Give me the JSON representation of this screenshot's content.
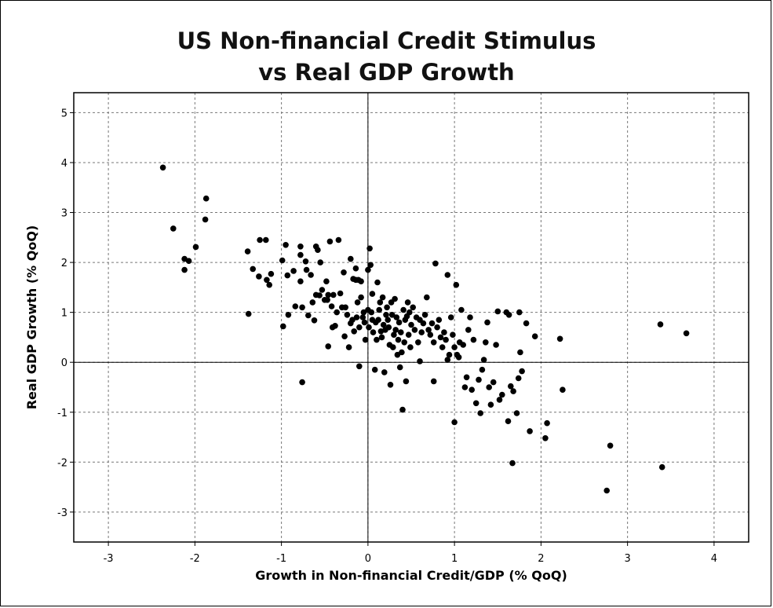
{
  "chart_data": {
    "type": "scatter",
    "title_lines": [
      "US Non-financial Credit Stimulus",
      "vs Real GDP Growth"
    ],
    "xlabel": "Growth in Non-financial Credit/GDP (% QoQ)",
    "ylabel": "Real GDP Growth (% QoQ)",
    "xlim": [
      -3.4,
      4.4
    ],
    "ylim": [
      -3.6,
      5.4
    ],
    "xticks": [
      -3,
      -2,
      -1,
      0,
      1,
      2,
      3,
      4
    ],
    "yticks": [
      -3,
      -2,
      -1,
      0,
      1,
      2,
      3,
      4,
      5
    ],
    "grid": true,
    "zero_lines": true,
    "series": [
      {
        "marker_color": "#000000",
        "points": [
          [
            -2.37,
            3.9
          ],
          [
            -2.25,
            2.68
          ],
          [
            -2.12,
            2.07
          ],
          [
            -2.12,
            1.85
          ],
          [
            -2.07,
            2.03
          ],
          [
            -1.99,
            2.31
          ],
          [
            -1.87,
            3.28
          ],
          [
            -1.88,
            2.86
          ],
          [
            -1.39,
            2.22
          ],
          [
            -1.38,
            0.97
          ],
          [
            -1.33,
            1.87
          ],
          [
            -1.26,
            1.72
          ],
          [
            -1.25,
            2.45
          ],
          [
            -1.18,
            2.45
          ],
          [
            -1.17,
            1.65
          ],
          [
            -1.14,
            1.55
          ],
          [
            -1.12,
            1.77
          ],
          [
            -0.99,
            2.04
          ],
          [
            -0.98,
            0.72
          ],
          [
            -0.95,
            2.35
          ],
          [
            -0.93,
            1.74
          ],
          [
            -0.92,
            0.95
          ],
          [
            -0.86,
            1.83
          ],
          [
            -0.84,
            1.12
          ],
          [
            -0.78,
            2.32
          ],
          [
            -0.78,
            2.15
          ],
          [
            -0.78,
            1.62
          ],
          [
            -0.76,
            1.1
          ],
          [
            -0.76,
            -0.4
          ],
          [
            -0.72,
            2.02
          ],
          [
            -0.71,
            1.85
          ],
          [
            -0.69,
            0.94
          ],
          [
            -0.66,
            1.75
          ],
          [
            -0.64,
            1.2
          ],
          [
            -0.62,
            0.84
          ],
          [
            -0.6,
            2.32
          ],
          [
            -0.6,
            1.35
          ],
          [
            -0.58,
            2.25
          ],
          [
            -0.56,
            1.34
          ],
          [
            -0.55,
            2.0
          ],
          [
            -0.53,
            1.45
          ],
          [
            -0.5,
            1.25
          ],
          [
            -0.48,
            1.62
          ],
          [
            -0.47,
            1.25
          ],
          [
            -0.46,
            0.32
          ],
          [
            -0.46,
            1.35
          ],
          [
            -0.44,
            2.42
          ],
          [
            -0.42,
            1.12
          ],
          [
            -0.41,
            0.7
          ],
          [
            -0.4,
            1.35
          ],
          [
            -0.38,
            0.73
          ],
          [
            -0.36,
            1.0
          ],
          [
            -0.34,
            2.45
          ],
          [
            -0.32,
            1.38
          ],
          [
            -0.3,
            1.1
          ],
          [
            -0.28,
            1.8
          ],
          [
            -0.27,
            0.52
          ],
          [
            -0.26,
            1.1
          ],
          [
            -0.24,
            0.95
          ],
          [
            -0.22,
            0.3
          ],
          [
            -0.2,
            0.78
          ],
          [
            -0.2,
            2.07
          ],
          [
            -0.18,
            0.85
          ],
          [
            -0.17,
            1.67
          ],
          [
            -0.16,
            0.62
          ],
          [
            -0.14,
            1.88
          ],
          [
            -0.14,
            1.65
          ],
          [
            -0.13,
            0.9
          ],
          [
            -0.12,
            1.2
          ],
          [
            -0.11,
            1.65
          ],
          [
            -0.1,
            -0.08
          ],
          [
            -0.1,
            0.7
          ],
          [
            -0.08,
            1.3
          ],
          [
            -0.08,
            1.62
          ],
          [
            -0.06,
            0.9
          ],
          [
            -0.05,
            1.0
          ],
          [
            -0.04,
            0.8
          ],
          [
            -0.03,
            0.45
          ],
          [
            0.0,
            1.05
          ],
          [
            0.0,
            1.85
          ],
          [
            0.01,
            0.7
          ],
          [
            0.02,
            2.28
          ],
          [
            0.03,
            1.95
          ],
          [
            0.04,
            1.0
          ],
          [
            0.05,
            0.85
          ],
          [
            0.05,
            1.37
          ],
          [
            0.06,
            0.6
          ],
          [
            0.08,
            -0.15
          ],
          [
            0.09,
            0.8
          ],
          [
            0.1,
            0.45
          ],
          [
            0.11,
            1.6
          ],
          [
            0.12,
            0.85
          ],
          [
            0.13,
            1.05
          ],
          [
            0.14,
            1.2
          ],
          [
            0.15,
            0.62
          ],
          [
            0.16,
            0.5
          ],
          [
            0.17,
            1.3
          ],
          [
            0.18,
            0.75
          ],
          [
            0.19,
            -0.2
          ],
          [
            0.2,
            0.65
          ],
          [
            0.21,
            0.95
          ],
          [
            0.22,
            1.1
          ],
          [
            0.23,
            0.85
          ],
          [
            0.24,
            0.7
          ],
          [
            0.25,
            0.35
          ],
          [
            0.26,
            -0.45
          ],
          [
            0.27,
            1.2
          ],
          [
            0.28,
            0.95
          ],
          [
            0.29,
            0.3
          ],
          [
            0.3,
            0.55
          ],
          [
            0.31,
            1.27
          ],
          [
            0.32,
            0.65
          ],
          [
            0.33,
            0.9
          ],
          [
            0.34,
            0.15
          ],
          [
            0.35,
            0.45
          ],
          [
            0.36,
            0.8
          ],
          [
            0.37,
            -0.1
          ],
          [
            0.38,
            0.6
          ],
          [
            0.39,
            0.2
          ],
          [
            0.4,
            -0.95
          ],
          [
            0.41,
            1.05
          ],
          [
            0.42,
            0.4
          ],
          [
            0.43,
            0.85
          ],
          [
            0.44,
            -0.38
          ],
          [
            0.45,
            0.92
          ],
          [
            0.46,
            1.2
          ],
          [
            0.47,
            0.55
          ],
          [
            0.48,
            1.0
          ],
          [
            0.49,
            0.3
          ],
          [
            0.5,
            0.75
          ],
          [
            0.52,
            1.1
          ],
          [
            0.54,
            0.65
          ],
          [
            0.56,
            0.9
          ],
          [
            0.58,
            0.4
          ],
          [
            0.6,
            0.85
          ],
          [
            0.6,
            0.02
          ],
          [
            0.62,
            0.6
          ],
          [
            0.64,
            0.78
          ],
          [
            0.66,
            0.95
          ],
          [
            0.68,
            1.3
          ],
          [
            0.7,
            0.65
          ],
          [
            0.72,
            0.55
          ],
          [
            0.74,
            0.78
          ],
          [
            0.76,
            0.4
          ],
          [
            0.76,
            -0.38
          ],
          [
            0.78,
            1.98
          ],
          [
            0.8,
            0.7
          ],
          [
            0.82,
            0.85
          ],
          [
            0.84,
            0.5
          ],
          [
            0.86,
            0.3
          ],
          [
            0.88,
            0.6
          ],
          [
            0.9,
            0.45
          ],
          [
            0.92,
            1.75
          ],
          [
            0.92,
            0.05
          ],
          [
            0.94,
            0.15
          ],
          [
            0.96,
            0.9
          ],
          [
            0.98,
            0.55
          ],
          [
            1.0,
            0.3
          ],
          [
            1.0,
            -1.2
          ],
          [
            1.02,
            1.55
          ],
          [
            1.03,
            0.15
          ],
          [
            1.05,
            0.1
          ],
          [
            1.06,
            0.4
          ],
          [
            1.08,
            1.05
          ],
          [
            1.1,
            0.35
          ],
          [
            1.12,
            -0.5
          ],
          [
            1.14,
            -0.3
          ],
          [
            1.16,
            0.65
          ],
          [
            1.18,
            0.9
          ],
          [
            1.2,
            -0.55
          ],
          [
            1.22,
            0.45
          ],
          [
            1.25,
            -0.82
          ],
          [
            1.28,
            -0.35
          ],
          [
            1.3,
            -1.02
          ],
          [
            1.32,
            -0.15
          ],
          [
            1.34,
            0.05
          ],
          [
            1.36,
            0.4
          ],
          [
            1.38,
            0.8
          ],
          [
            1.4,
            -0.5
          ],
          [
            1.42,
            -0.85
          ],
          [
            1.45,
            -0.4
          ],
          [
            1.48,
            0.35
          ],
          [
            1.5,
            1.02
          ],
          [
            1.52,
            -0.75
          ],
          [
            1.55,
            -0.65
          ],
          [
            1.6,
            1.0
          ],
          [
            1.62,
            -1.18
          ],
          [
            1.63,
            0.95
          ],
          [
            1.65,
            -0.48
          ],
          [
            1.67,
            -2.02
          ],
          [
            1.68,
            -0.58
          ],
          [
            1.72,
            -1.02
          ],
          [
            1.74,
            -0.32
          ],
          [
            1.75,
            1.0
          ],
          [
            1.76,
            0.2
          ],
          [
            1.78,
            -0.18
          ],
          [
            1.83,
            0.78
          ],
          [
            1.87,
            -1.38
          ],
          [
            1.93,
            0.52
          ],
          [
            2.05,
            -1.52
          ],
          [
            2.07,
            -1.22
          ],
          [
            2.22,
            0.47
          ],
          [
            2.25,
            -0.55
          ],
          [
            2.76,
            -2.57
          ],
          [
            2.8,
            -1.67
          ],
          [
            3.38,
            0.76
          ],
          [
            3.4,
            -2.1
          ],
          [
            3.68,
            0.58
          ]
        ]
      }
    ]
  }
}
